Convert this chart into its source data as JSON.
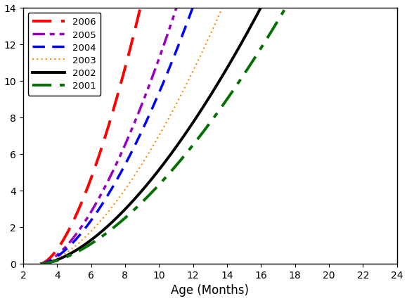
{
  "title": "",
  "xlabel": "Age (Months)",
  "ylabel": "",
  "xlim": [
    2,
    24
  ],
  "ylim": [
    0,
    14
  ],
  "xticks": [
    2,
    4,
    6,
    8,
    10,
    12,
    14,
    16,
    18,
    20,
    22,
    24
  ],
  "yticks": [
    0,
    2,
    4,
    6,
    8,
    10,
    12,
    14
  ],
  "series": [
    {
      "label": "2006",
      "color": "#ff0000",
      "ls_type": "dashed_long",
      "lw": 2.8,
      "x_start": 3,
      "x_end": 17,
      "a": 0.79,
      "b": 1.62
    },
    {
      "label": "2005",
      "color": "#9900bb",
      "ls_type": "dashdotdot",
      "lw": 2.5,
      "x_start": 3,
      "x_end": 24,
      "a": 0.48,
      "b": 1.62
    },
    {
      "label": "2004",
      "color": "#0000ff",
      "ls_type": "dashed_med",
      "lw": 2.5,
      "x_start": 3,
      "x_end": 24,
      "a": 0.4,
      "b": 1.62
    },
    {
      "label": "2003",
      "color": "#ff8800",
      "ls_type": "dotted_fine",
      "lw": 1.5,
      "x_start": 3,
      "x_end": 24,
      "a": 0.3,
      "b": 1.62
    },
    {
      "label": "2002",
      "color": "#000000",
      "ls_type": "solid",
      "lw": 2.8,
      "x_start": 3,
      "x_end": 24,
      "a": 0.22,
      "b": 1.62
    },
    {
      "label": "2001",
      "color": "#007000",
      "ls_type": "dashdotlong",
      "lw": 2.8,
      "x_start": 3,
      "x_end": 24,
      "a": 0.185,
      "b": 1.62
    }
  ],
  "background_color": "#ffffff",
  "legend_loc": "upper left",
  "tick_fontsize": 10,
  "label_fontsize": 12
}
